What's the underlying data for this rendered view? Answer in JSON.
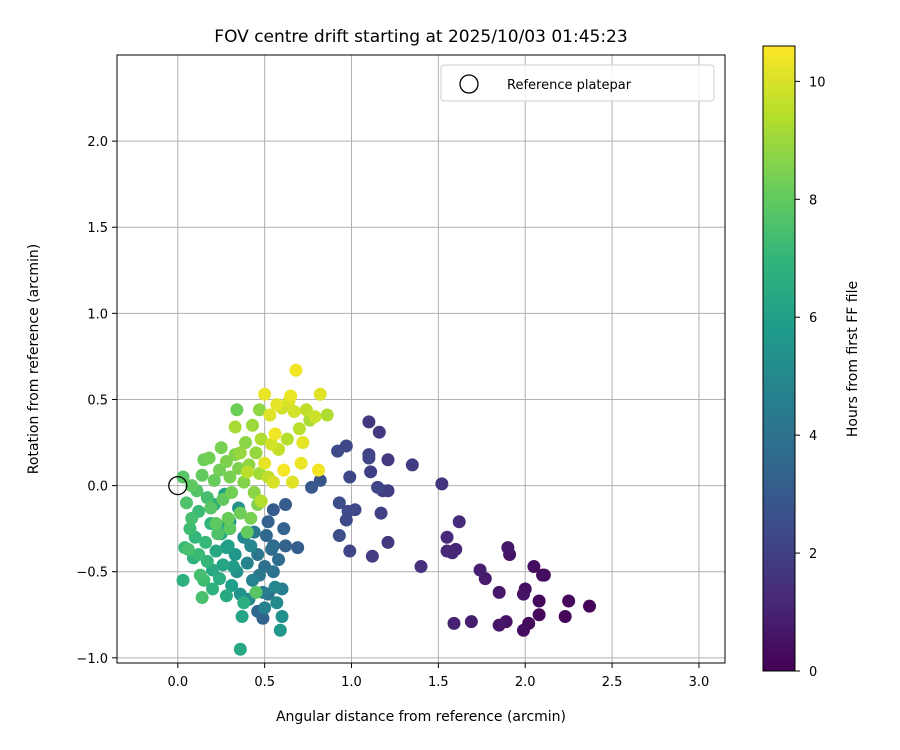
{
  "chart_data": {
    "type": "scatter",
    "title": "FOV centre drift starting at 2025/10/03 01:45:23",
    "xlabel": "Angular distance from reference (arcmin)",
    "ylabel": "Rotation from reference (arcmin)",
    "xlim": [
      -0.35,
      3.15
    ],
    "ylim": [
      -1.03,
      2.5
    ],
    "xticks": [
      0.0,
      0.5,
      1.0,
      1.5,
      2.0,
      2.5,
      3.0
    ],
    "xtick_labels": [
      "0.0",
      "0.5",
      "1.0",
      "1.5",
      "2.0",
      "2.5",
      "3.0"
    ],
    "yticks": [
      -1.0,
      -0.5,
      0.0,
      0.5,
      1.0,
      1.5,
      2.0
    ],
    "ytick_labels": [
      "−1.0",
      "−0.5",
      "0.0",
      "0.5",
      "1.0",
      "1.5",
      "2.0"
    ],
    "grid": true,
    "legend": {
      "position": "top-right",
      "label": "Reference platepar"
    },
    "reference_point": {
      "x": 0.0,
      "y": 0.0
    },
    "colorbar": {
      "label": "Hours from first FF file",
      "range": [
        0,
        10.6
      ],
      "ticks": [
        0,
        2,
        4,
        6,
        8,
        10
      ],
      "tick_labels": [
        "0",
        "2",
        "4",
        "6",
        "8",
        "10"
      ],
      "colormap": "viridis"
    },
    "colormap_stops": [
      "#440154",
      "#482878",
      "#3e4989",
      "#31688e",
      "#26828e",
      "#1f9e89",
      "#35b779",
      "#6ece58",
      "#b5de2b",
      "#fde725"
    ],
    "points": [
      {
        "x": 2.37,
        "y": -0.7,
        "t": 0.1
      },
      {
        "x": 2.25,
        "y": -0.67,
        "t": 0.2
      },
      {
        "x": 2.23,
        "y": -0.76,
        "t": 0.15
      },
      {
        "x": 2.1,
        "y": -0.52,
        "t": 0.3
      },
      {
        "x": 2.11,
        "y": -0.52,
        "t": 0.35
      },
      {
        "x": 2.08,
        "y": -0.67,
        "t": 0.25
      },
      {
        "x": 2.08,
        "y": -0.75,
        "t": 0.2
      },
      {
        "x": 2.05,
        "y": -0.47,
        "t": 0.4
      },
      {
        "x": 2.02,
        "y": -0.8,
        "t": 0.3
      },
      {
        "x": 1.99,
        "y": -0.84,
        "t": 0.35
      },
      {
        "x": 2.0,
        "y": -0.6,
        "t": 0.45
      },
      {
        "x": 1.99,
        "y": -0.63,
        "t": 0.5
      },
      {
        "x": 1.91,
        "y": -0.4,
        "t": 0.6
      },
      {
        "x": 1.9,
        "y": -0.36,
        "t": 0.7
      },
      {
        "x": 1.89,
        "y": -0.79,
        "t": 0.55
      },
      {
        "x": 1.85,
        "y": -0.81,
        "t": 0.65
      },
      {
        "x": 1.85,
        "y": -0.62,
        "t": 0.7
      },
      {
        "x": 1.77,
        "y": -0.54,
        "t": 0.8
      },
      {
        "x": 1.74,
        "y": -0.49,
        "t": 0.9
      },
      {
        "x": 1.69,
        "y": -0.79,
        "t": 0.85
      },
      {
        "x": 1.62,
        "y": -0.21,
        "t": 1.3
      },
      {
        "x": 1.6,
        "y": -0.37,
        "t": 1.1
      },
      {
        "x": 1.58,
        "y": -0.39,
        "t": 1.2
      },
      {
        "x": 1.59,
        "y": -0.8,
        "t": 1.0
      },
      {
        "x": 1.55,
        "y": -0.38,
        "t": 1.15
      },
      {
        "x": 1.55,
        "y": -0.3,
        "t": 1.25
      },
      {
        "x": 1.52,
        "y": 0.01,
        "t": 1.6
      },
      {
        "x": 1.4,
        "y": -0.47,
        "t": 1.5
      },
      {
        "x": 1.35,
        "y": 0.12,
        "t": 1.9
      },
      {
        "x": 1.21,
        "y": 0.15,
        "t": 1.8
      },
      {
        "x": 1.21,
        "y": -0.03,
        "t": 1.9
      },
      {
        "x": 1.21,
        "y": -0.33,
        "t": 1.7
      },
      {
        "x": 1.18,
        "y": -0.03,
        "t": 2.0
      },
      {
        "x": 1.17,
        "y": -0.16,
        "t": 2.1
      },
      {
        "x": 1.16,
        "y": 0.31,
        "t": 1.8
      },
      {
        "x": 1.15,
        "y": -0.01,
        "t": 2.2
      },
      {
        "x": 1.12,
        "y": -0.41,
        "t": 1.9
      },
      {
        "x": 1.11,
        "y": 0.08,
        "t": 2.0
      },
      {
        "x": 1.1,
        "y": 0.37,
        "t": 1.8
      },
      {
        "x": 1.1,
        "y": 0.18,
        "t": 2.1
      },
      {
        "x": 1.1,
        "y": 0.16,
        "t": 2.2
      },
      {
        "x": 1.02,
        "y": -0.14,
        "t": 2.3
      },
      {
        "x": 0.99,
        "y": -0.38,
        "t": 2.2
      },
      {
        "x": 0.99,
        "y": 0.05,
        "t": 2.3
      },
      {
        "x": 0.98,
        "y": -0.15,
        "t": 2.4
      },
      {
        "x": 0.97,
        "y": -0.2,
        "t": 2.4
      },
      {
        "x": 0.97,
        "y": 0.23,
        "t": 2.3
      },
      {
        "x": 0.93,
        "y": -0.29,
        "t": 2.5
      },
      {
        "x": 0.93,
        "y": -0.1,
        "t": 2.5
      },
      {
        "x": 0.92,
        "y": 0.2,
        "t": 2.4
      },
      {
        "x": 0.82,
        "y": 0.03,
        "t": 2.8
      },
      {
        "x": 0.77,
        "y": -0.01,
        "t": 2.9
      },
      {
        "x": 0.69,
        "y": -0.36,
        "t": 3.2
      },
      {
        "x": 0.62,
        "y": -0.35,
        "t": 3.3
      },
      {
        "x": 0.62,
        "y": -0.11,
        "t": 3.1
      },
      {
        "x": 0.61,
        "y": -0.25,
        "t": 3.4
      },
      {
        "x": 0.6,
        "y": -0.6,
        "t": 4.5
      },
      {
        "x": 0.58,
        "y": -0.43,
        "t": 3.7
      },
      {
        "x": 0.57,
        "y": -0.68,
        "t": 5.0
      },
      {
        "x": 0.6,
        "y": -0.76,
        "t": 5.3
      },
      {
        "x": 0.59,
        "y": -0.84,
        "t": 5.6
      },
      {
        "x": 0.56,
        "y": -0.59,
        "t": 4.9
      },
      {
        "x": 0.55,
        "y": -0.5,
        "t": 4.0
      },
      {
        "x": 0.55,
        "y": -0.35,
        "t": 3.6
      },
      {
        "x": 0.55,
        "y": -0.14,
        "t": 3.0
      },
      {
        "x": 0.52,
        "y": -0.21,
        "t": 3.3
      },
      {
        "x": 0.5,
        "y": -0.47,
        "t": 3.9
      },
      {
        "x": 0.5,
        "y": -0.71,
        "t": 4.6
      },
      {
        "x": 0.49,
        "y": -0.77,
        "t": 3.4
      },
      {
        "x": 0.49,
        "y": -0.62,
        "t": 4.4
      },
      {
        "x": 0.46,
        "y": -0.4,
        "t": 4.1
      },
      {
        "x": 0.46,
        "y": -0.73,
        "t": 3.5
      },
      {
        "x": 0.44,
        "y": -0.27,
        "t": 4.3
      },
      {
        "x": 0.43,
        "y": -0.55,
        "t": 4.7
      },
      {
        "x": 0.41,
        "y": -0.66,
        "t": 5.1
      },
      {
        "x": 0.4,
        "y": -0.45,
        "t": 4.8
      },
      {
        "x": 0.38,
        "y": -0.3,
        "t": 5.0
      },
      {
        "x": 0.37,
        "y": -0.76,
        "t": 6.2
      },
      {
        "x": 0.36,
        "y": -0.95,
        "t": 6.3
      },
      {
        "x": 0.36,
        "y": -0.63,
        "t": 5.5
      },
      {
        "x": 0.34,
        "y": -0.5,
        "t": 5.3
      },
      {
        "x": 0.33,
        "y": -0.4,
        "t": 5.6
      },
      {
        "x": 0.31,
        "y": -0.58,
        "t": 5.9
      },
      {
        "x": 0.3,
        "y": -0.21,
        "t": 5.7
      },
      {
        "x": 0.29,
        "y": -0.35,
        "t": 6.0
      },
      {
        "x": 0.28,
        "y": -0.64,
        "t": 6.4
      },
      {
        "x": 0.27,
        "y": -0.05,
        "t": 6.1
      },
      {
        "x": 0.26,
        "y": -0.46,
        "t": 6.2
      },
      {
        "x": 0.25,
        "y": -0.28,
        "t": 6.5
      },
      {
        "x": 0.24,
        "y": -0.54,
        "t": 6.6
      },
      {
        "x": 0.22,
        "y": -0.38,
        "t": 6.3
      },
      {
        "x": 0.21,
        "y": -0.11,
        "t": 6.7
      },
      {
        "x": 0.2,
        "y": -0.6,
        "t": 6.8
      },
      {
        "x": 0.19,
        "y": -0.22,
        "t": 6.9
      },
      {
        "x": 0.17,
        "y": -0.44,
        "t": 7.0
      },
      {
        "x": 0.16,
        "y": -0.33,
        "t": 7.1
      },
      {
        "x": 0.15,
        "y": -0.55,
        "t": 7.3
      },
      {
        "x": 0.14,
        "y": -0.65,
        "t": 7.5
      },
      {
        "x": 0.13,
        "y": -0.52,
        "t": 7.4
      },
      {
        "x": 0.12,
        "y": -0.15,
        "t": 7.2
      },
      {
        "x": 0.1,
        "y": -0.3,
        "t": 7.0
      },
      {
        "x": 0.09,
        "y": -0.42,
        "t": 6.8
      },
      {
        "x": 0.07,
        "y": -0.25,
        "t": 7.3
      },
      {
        "x": 0.06,
        "y": -0.37,
        "t": 7.5
      },
      {
        "x": 0.04,
        "y": -0.36,
        "t": 7.1
      },
      {
        "x": 0.03,
        "y": -0.55,
        "t": 6.7
      },
      {
        "x": 0.05,
        "y": -0.1,
        "t": 7.6
      },
      {
        "x": 0.03,
        "y": 0.05,
        "t": 7.8
      },
      {
        "x": 0.08,
        "y": 0.0,
        "t": 7.9
      },
      {
        "x": 0.11,
        "y": -0.03,
        "t": 7.7
      },
      {
        "x": 0.14,
        "y": 0.06,
        "t": 8.0
      },
      {
        "x": 0.15,
        "y": 0.15,
        "t": 8.2
      },
      {
        "x": 0.18,
        "y": 0.16,
        "t": 8.3
      },
      {
        "x": 0.19,
        "y": -0.13,
        "t": 7.8
      },
      {
        "x": 0.21,
        "y": 0.03,
        "t": 8.1
      },
      {
        "x": 0.22,
        "y": -0.22,
        "t": 7.9
      },
      {
        "x": 0.24,
        "y": 0.09,
        "t": 8.3
      },
      {
        "x": 0.25,
        "y": 0.22,
        "t": 8.4
      },
      {
        "x": 0.26,
        "y": -0.08,
        "t": 8.0
      },
      {
        "x": 0.28,
        "y": 0.14,
        "t": 8.5
      },
      {
        "x": 0.29,
        "y": -0.19,
        "t": 8.1
      },
      {
        "x": 0.3,
        "y": 0.05,
        "t": 8.4
      },
      {
        "x": 0.31,
        "y": -0.04,
        "t": 8.3
      },
      {
        "x": 0.33,
        "y": 0.18,
        "t": 8.6
      },
      {
        "x": 0.34,
        "y": 0.44,
        "t": 8.2
      },
      {
        "x": 0.35,
        "y": 0.1,
        "t": 8.5
      },
      {
        "x": 0.36,
        "y": -0.16,
        "t": 8.2
      },
      {
        "x": 0.38,
        "y": 0.02,
        "t": 8.6
      },
      {
        "x": 0.39,
        "y": 0.25,
        "t": 8.7
      },
      {
        "x": 0.4,
        "y": -0.27,
        "t": 8.0
      },
      {
        "x": 0.41,
        "y": 0.12,
        "t": 8.8
      },
      {
        "x": 0.43,
        "y": 0.35,
        "t": 9.0
      },
      {
        "x": 0.44,
        "y": -0.04,
        "t": 8.7
      },
      {
        "x": 0.45,
        "y": 0.19,
        "t": 8.9
      },
      {
        "x": 0.46,
        "y": -0.11,
        "t": 8.5
      },
      {
        "x": 0.47,
        "y": 0.07,
        "t": 9.1
      },
      {
        "x": 0.48,
        "y": 0.27,
        "t": 9.3
      },
      {
        "x": 0.5,
        "y": 0.13,
        "t": 10.2
      },
      {
        "x": 0.5,
        "y": 0.53,
        "t": 10.3
      },
      {
        "x": 0.52,
        "y": 0.05,
        "t": 9.6
      },
      {
        "x": 0.53,
        "y": 0.41,
        "t": 10.1
      },
      {
        "x": 0.54,
        "y": 0.24,
        "t": 9.9
      },
      {
        "x": 0.55,
        "y": 0.02,
        "t": 10.0
      },
      {
        "x": 0.56,
        "y": 0.3,
        "t": 10.4
      },
      {
        "x": 0.57,
        "y": 0.47,
        "t": 10.2
      },
      {
        "x": 0.58,
        "y": 0.21,
        "t": 9.7
      },
      {
        "x": 0.6,
        "y": 0.45,
        "t": 9.8
      },
      {
        "x": 0.61,
        "y": 0.09,
        "t": 10.5
      },
      {
        "x": 0.63,
        "y": 0.27,
        "t": 9.4
      },
      {
        "x": 0.64,
        "y": 0.49,
        "t": 10.0
      },
      {
        "x": 0.65,
        "y": 0.52,
        "t": 10.3
      },
      {
        "x": 0.66,
        "y": 0.02,
        "t": 10.1
      },
      {
        "x": 0.67,
        "y": 0.43,
        "t": 9.9
      },
      {
        "x": 0.68,
        "y": 0.67,
        "t": 10.4
      },
      {
        "x": 0.7,
        "y": 0.33,
        "t": 9.5
      },
      {
        "x": 0.71,
        "y": 0.13,
        "t": 10.3
      },
      {
        "x": 0.72,
        "y": 0.25,
        "t": 10.2
      },
      {
        "x": 0.74,
        "y": 0.44,
        "t": 9.6
      },
      {
        "x": 0.76,
        "y": 0.38,
        "t": 9.2
      },
      {
        "x": 0.79,
        "y": 0.4,
        "t": 9.8
      },
      {
        "x": 0.81,
        "y": 0.09,
        "t": 10.4
      },
      {
        "x": 0.82,
        "y": 0.53,
        "t": 10.1
      },
      {
        "x": 0.86,
        "y": 0.41,
        "t": 9.3
      },
      {
        "x": 0.47,
        "y": 0.44,
        "t": 8.8
      },
      {
        "x": 0.42,
        "y": -0.19,
        "t": 8.4
      },
      {
        "x": 0.36,
        "y": 0.19,
        "t": 8.9
      },
      {
        "x": 0.3,
        "y": -0.25,
        "t": 7.9
      },
      {
        "x": 0.23,
        "y": -0.28,
        "t": 7.6
      },
      {
        "x": 0.17,
        "y": -0.07,
        "t": 7.4
      },
      {
        "x": 0.45,
        "y": -0.62,
        "t": 7.8
      },
      {
        "x": 0.26,
        "y": -0.24,
        "t": 6.4
      },
      {
        "x": 0.28,
        "y": -0.36,
        "t": 6.0
      },
      {
        "x": 0.32,
        "y": -0.47,
        "t": 5.8
      },
      {
        "x": 0.35,
        "y": -0.13,
        "t": 5.4
      },
      {
        "x": 0.38,
        "y": -0.68,
        "t": 6.6
      },
      {
        "x": 0.42,
        "y": -0.35,
        "t": 4.9
      },
      {
        "x": 0.47,
        "y": -0.52,
        "t": 4.2
      },
      {
        "x": 0.52,
        "y": -0.63,
        "t": 4.0
      },
      {
        "x": 0.54,
        "y": -0.37,
        "t": 3.8
      },
      {
        "x": 0.2,
        "y": -0.49,
        "t": 6.4
      },
      {
        "x": 0.12,
        "y": -0.4,
        "t": 7.2
      },
      {
        "x": 0.08,
        "y": -0.19,
        "t": 7.4
      },
      {
        "x": 0.48,
        "y": -0.09,
        "t": 9.4
      },
      {
        "x": 0.51,
        "y": -0.29,
        "t": 3.6
      },
      {
        "x": 0.33,
        "y": 0.34,
        "t": 9.2
      },
      {
        "x": 0.4,
        "y": 0.08,
        "t": 9.5
      }
    ]
  }
}
